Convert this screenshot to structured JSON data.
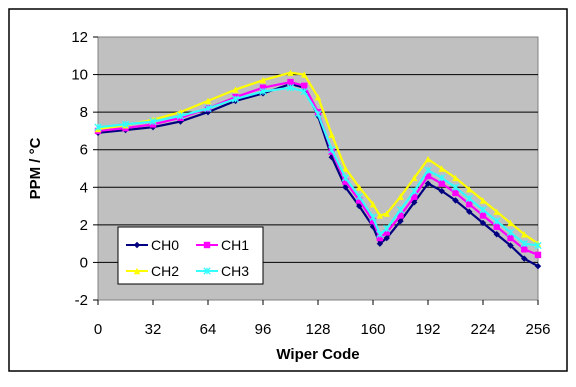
{
  "chart_data": {
    "type": "line",
    "title": "",
    "xlabel": "Wiper Code",
    "ylabel": "PPM / °C",
    "xlim": [
      0,
      256
    ],
    "ylim": [
      -2,
      12
    ],
    "x_ticks": [
      "0",
      "32",
      "64",
      "96",
      "128",
      "160",
      "192",
      "224",
      "256"
    ],
    "y_ticks": [
      "-2",
      "0",
      "2",
      "4",
      "6",
      "8",
      "10",
      "12"
    ],
    "grid": "horizontal",
    "plot_background": "#c0c0c0",
    "legend_position": "lower-left",
    "series": [
      {
        "name": "CH0",
        "color": "#000080",
        "marker": "diamond",
        "x": [
          0,
          16,
          32,
          48,
          64,
          80,
          96,
          112,
          120,
          128,
          136,
          144,
          152,
          160,
          164,
          168,
          176,
          184,
          192,
          200,
          208,
          216,
          224,
          232,
          240,
          248,
          256
        ],
        "y": [
          6.9,
          7.05,
          7.2,
          7.5,
          8.0,
          8.6,
          9.0,
          9.5,
          9.3,
          7.8,
          5.6,
          4.0,
          3.0,
          1.9,
          1.0,
          1.3,
          2.2,
          3.2,
          4.2,
          3.8,
          3.3,
          2.7,
          2.1,
          1.5,
          0.9,
          0.2,
          -0.2
        ]
      },
      {
        "name": "CH1",
        "color": "#ff00ff",
        "marker": "square",
        "x": [
          0,
          16,
          32,
          48,
          64,
          80,
          96,
          112,
          120,
          128,
          136,
          144,
          152,
          160,
          164,
          168,
          176,
          184,
          192,
          200,
          208,
          216,
          224,
          232,
          240,
          248,
          256
        ],
        "y": [
          7.0,
          7.15,
          7.35,
          7.7,
          8.2,
          8.8,
          9.3,
          9.6,
          9.4,
          8.0,
          5.9,
          4.3,
          3.3,
          2.2,
          1.3,
          1.6,
          2.5,
          3.5,
          4.6,
          4.2,
          3.7,
          3.1,
          2.5,
          1.9,
          1.3,
          0.7,
          0.4
        ]
      },
      {
        "name": "CH2",
        "color": "#ffff00",
        "marker": "triangle",
        "x": [
          0,
          16,
          32,
          48,
          64,
          80,
          96,
          112,
          120,
          128,
          136,
          144,
          152,
          160,
          164,
          168,
          176,
          184,
          192,
          200,
          208,
          216,
          224,
          232,
          240,
          248,
          256
        ],
        "y": [
          7.1,
          7.3,
          7.6,
          8.0,
          8.6,
          9.2,
          9.7,
          10.1,
          10.0,
          8.8,
          6.8,
          5.0,
          4.0,
          3.1,
          2.5,
          2.6,
          3.5,
          4.5,
          5.5,
          5.0,
          4.5,
          3.9,
          3.3,
          2.7,
          2.1,
          1.5,
          1.0
        ]
      },
      {
        "name": "CH3",
        "color": "#33ffff",
        "marker": "asterisk",
        "x": [
          0,
          16,
          32,
          48,
          64,
          80,
          96,
          112,
          120,
          128,
          136,
          144,
          152,
          160,
          164,
          168,
          176,
          184,
          192,
          200,
          208,
          216,
          224,
          232,
          240,
          248,
          256
        ],
        "y": [
          7.2,
          7.35,
          7.5,
          7.8,
          8.2,
          8.7,
          9.1,
          9.3,
          9.1,
          7.9,
          6.0,
          4.5,
          3.5,
          2.4,
          1.5,
          1.8,
          2.8,
          3.8,
          4.9,
          4.5,
          4.0,
          3.4,
          2.8,
          2.2,
          1.6,
          1.0,
          0.9
        ]
      }
    ]
  }
}
